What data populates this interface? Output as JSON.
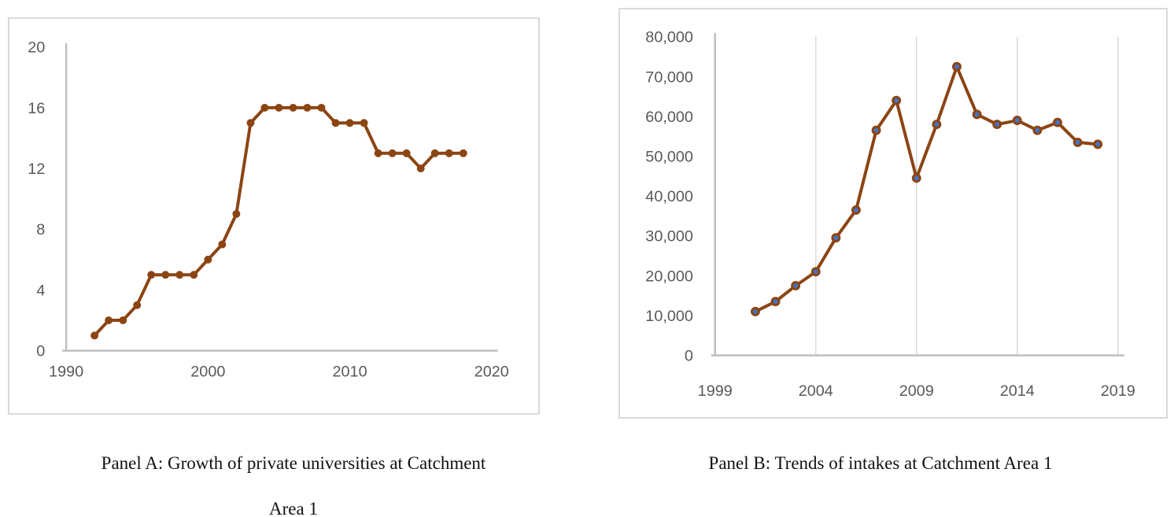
{
  "captions": {
    "panel_a_line1": "Panel A: Growth of private universities at Catchment",
    "panel_a_line2": "Area 1",
    "panel_b_line1": "Panel B: Trends of intakes at Catchment Area 1"
  },
  "colors": {
    "line_brown": "#8B4513",
    "marker_blue": "#4472C4",
    "axis_gray": "#BFBFBF",
    "gridline_gray": "#D9D9D9",
    "tick_label_gray": "#595959",
    "panel_border": "#D9D9D9"
  },
  "chart_data": [
    {
      "type": "line",
      "title": "Panel A: Growth of private universities at Catchment Area 1",
      "x": [
        1992,
        1993,
        1994,
        1995,
        1996,
        1997,
        1998,
        1999,
        2000,
        2001,
        2002,
        2003,
        2004,
        2005,
        2006,
        2007,
        2008,
        2009,
        2010,
        2011,
        2012,
        2013,
        2014,
        2015,
        2016,
        2017,
        2018
      ],
      "values": [
        1,
        2,
        2,
        3,
        5,
        5,
        5,
        5,
        6,
        7,
        9,
        15,
        16,
        16,
        16,
        16,
        16,
        15,
        15,
        15,
        13,
        13,
        13,
        12,
        13,
        13,
        13
      ],
      "xlabel": "",
      "ylabel": "",
      "xlim": [
        1990,
        2020
      ],
      "ylim": [
        0,
        20
      ],
      "x_ticks": [
        1990,
        2000,
        2010,
        2020
      ],
      "y_ticks": [
        0,
        4,
        8,
        12,
        16,
        20
      ],
      "grid": "none",
      "legend": "none",
      "y_tick_format": "plain",
      "line_color": "#8B4513",
      "line_width": 4,
      "marker_fill": "#8B4513",
      "marker_stroke": "none",
      "marker_stroke_width": 0,
      "marker_radius": 5
    },
    {
      "type": "line",
      "title": "Panel B: Trends of intakes at Catchment Area 1",
      "x": [
        2001,
        2002,
        2003,
        2004,
        2005,
        2006,
        2007,
        2008,
        2009,
        2010,
        2011,
        2012,
        2013,
        2014,
        2015,
        2016,
        2017,
        2018
      ],
      "values": [
        11000,
        13500,
        17500,
        21000,
        29500,
        36500,
        56500,
        64000,
        44500,
        58000,
        72500,
        60500,
        58000,
        59000,
        56500,
        58500,
        53500,
        53000
      ],
      "xlabel": "",
      "ylabel": "",
      "xlim": [
        1999,
        2019
      ],
      "ylim": [
        0,
        80000
      ],
      "x_ticks": [
        1999,
        2004,
        2009,
        2014,
        2019
      ],
      "y_ticks": [
        0,
        10000,
        20000,
        30000,
        40000,
        50000,
        60000,
        70000,
        80000
      ],
      "grid": "vertical",
      "legend": "none",
      "y_tick_format": "thousands",
      "line_color": "#8B4513",
      "line_width": 4,
      "marker_fill": "#4472C4",
      "marker_stroke": "#8B4513",
      "marker_stroke_width": 3,
      "marker_radius": 4.5
    }
  ]
}
